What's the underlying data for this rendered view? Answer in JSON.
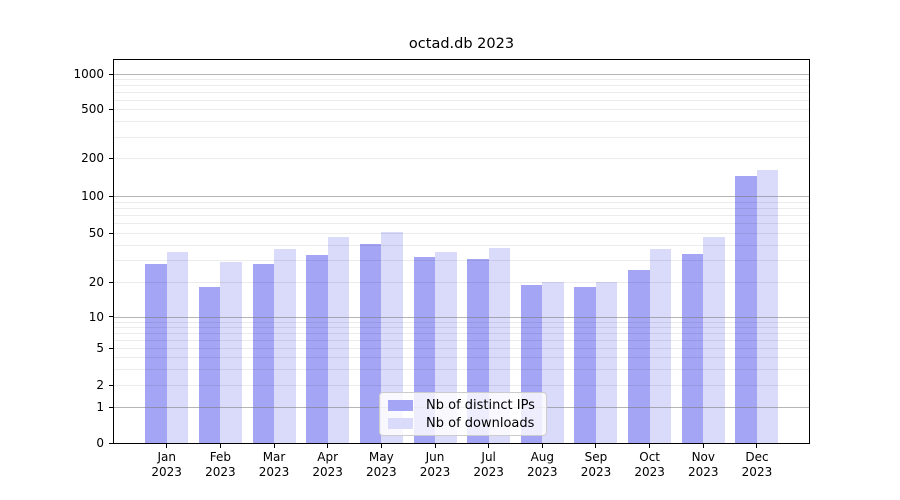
{
  "figure_title": "octad.db 2023",
  "chart_data": {
    "type": "bar",
    "title": "octad.db 2023",
    "x_months": [
      "Jan",
      "Feb",
      "Mar",
      "Apr",
      "May",
      "Jun",
      "Jul",
      "Aug",
      "Sep",
      "Oct",
      "Nov",
      "Dec"
    ],
    "x_year": "2023",
    "categories": [
      "Jan 2023",
      "Feb 2023",
      "Mar 2023",
      "Apr 2023",
      "May 2023",
      "Jun 2023",
      "Jul 2023",
      "Aug 2023",
      "Sep 2023",
      "Oct 2023",
      "Nov 2023",
      "Dec 2023"
    ],
    "series": [
      {
        "name": "Nb of distinct IPs",
        "color": "#a5a5f6",
        "values": [
          28,
          18,
          28,
          33,
          41,
          32,
          31,
          19,
          18,
          25,
          34,
          145
        ]
      },
      {
        "name": "Nb of downloads",
        "color": "#dadafb",
        "values": [
          35,
          29,
          37,
          47,
          51,
          35,
          38,
          20,
          20,
          37,
          47,
          160
        ]
      }
    ],
    "yscale": "symlog",
    "ylim": [
      0,
      1300
    ],
    "yticks": [
      0,
      1,
      2,
      5,
      10,
      20,
      50,
      100,
      200,
      500,
      1000
    ],
    "grid": "both",
    "legend": {
      "position": "lower center",
      "entries": [
        "Nb of distinct IPs",
        "Nb of downloads"
      ]
    },
    "colors": {
      "grid_major": "#b5b5b5",
      "grid_minor": "#ebebeb",
      "axis": "#000000",
      "background": "#ffffff"
    }
  }
}
